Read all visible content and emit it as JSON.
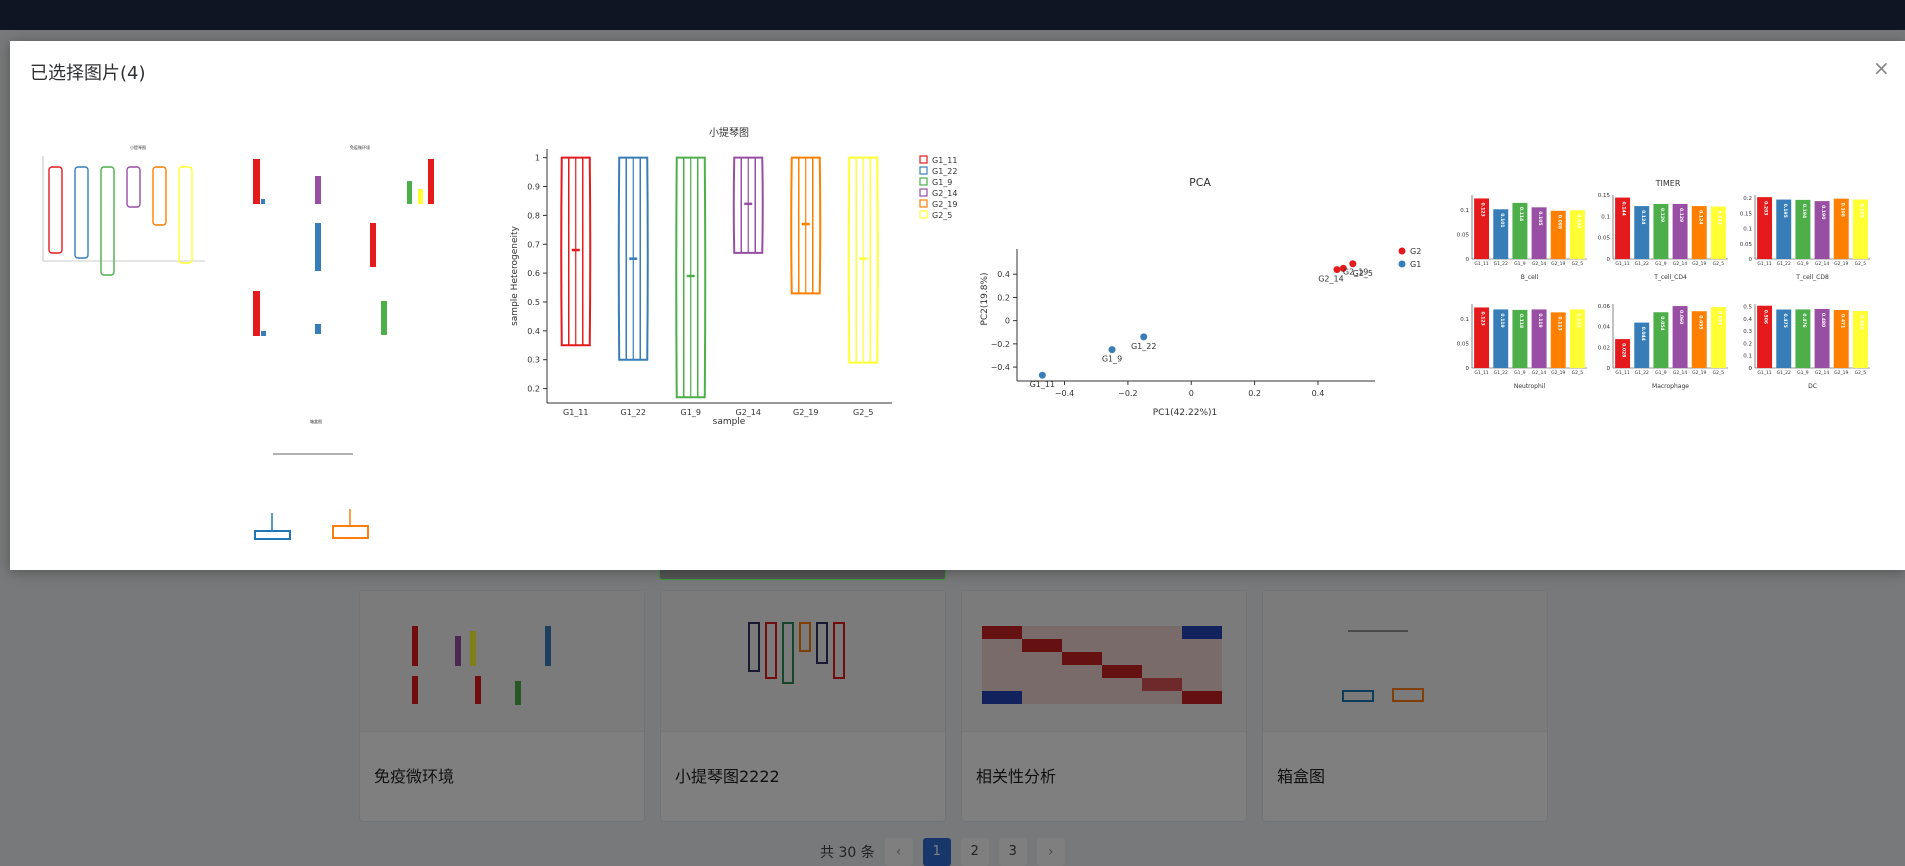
{
  "dialog": {
    "title": "已选择图片(4)",
    "close_icon": "×"
  },
  "background_cards": [
    {
      "title": "免疫微环境"
    },
    {
      "title": "小提琴图2222"
    },
    {
      "title": "相关性分析"
    },
    {
      "title": "箱盒图"
    }
  ],
  "pagination": {
    "total": "共 30 条",
    "pages": [
      "1",
      "2",
      "3"
    ],
    "active": "1",
    "prev": "‹",
    "next": "›"
  },
  "chart_data": [
    {
      "type": "violin",
      "title": "小提琴图",
      "xlabel": "sample",
      "ylabel": "sample Heterogeneity",
      "categories": [
        "G1_11",
        "G1_22",
        "G1_9",
        "G2_14",
        "G2_19",
        "G2_5"
      ],
      "ranges": [
        [
          0.35,
          1.0
        ],
        [
          0.3,
          1.0
        ],
        [
          0.17,
          1.0
        ],
        [
          0.67,
          1.0
        ],
        [
          0.53,
          1.0
        ],
        [
          0.29,
          1.0
        ]
      ],
      "medians": [
        0.68,
        0.65,
        0.59,
        0.84,
        0.77,
        0.65
      ],
      "colors": [
        "#e41a1c",
        "#377eb8",
        "#4daf4a",
        "#984ea3",
        "#ff7f00",
        "#ffff33"
      ],
      "yticks": [
        "0.2",
        "0.3",
        "0.4",
        "0.5",
        "0.6",
        "0.7",
        "0.8",
        "0.9",
        "1"
      ],
      "ylim": [
        0.15,
        1.03
      ],
      "legend": [
        "G1_11",
        "G1_22",
        "G1_9",
        "G2_14",
        "G2_19",
        "G2_5"
      ]
    },
    {
      "type": "scatter",
      "title": "PCA",
      "xlabel": "PC1(42.22%)1",
      "ylabel": "PC2(19.8%)",
      "xticks": [
        "−0.4",
        "−0.2",
        "0",
        "0.2",
        "0.4"
      ],
      "yticks": [
        "−0.4",
        "−0.2",
        "0",
        "0.2",
        "0.4"
      ],
      "xlim": [
        -0.55,
        0.58
      ],
      "ylim": [
        -0.52,
        0.6
      ],
      "points": [
        {
          "x": -0.47,
          "y": -0.47,
          "label": "G1_11",
          "group": "G1"
        },
        {
          "x": -0.25,
          "y": -0.25,
          "label": "G1_9",
          "group": "G1"
        },
        {
          "x": -0.15,
          "y": -0.14,
          "label": "G1_22",
          "group": "G1"
        },
        {
          "x": 0.46,
          "y": 0.44,
          "label": "G2_14",
          "group": "G2"
        },
        {
          "x": 0.48,
          "y": 0.45,
          "label": "",
          "group": "G2"
        },
        {
          "x": 0.51,
          "y": 0.49,
          "label": "G2_5",
          "group": "G2"
        }
      ],
      "point_labels_extra": [
        "G2_19"
      ],
      "legend": [
        {
          "name": "G2",
          "color": "#e41a1c"
        },
        {
          "name": "G1",
          "color": "#377eb8"
        }
      ]
    },
    {
      "type": "bar",
      "title": "TIMER",
      "categories": [
        "G1_11",
        "G1_22",
        "G1_9",
        "G2_14",
        "G2_19",
        "G2_5"
      ],
      "colors": [
        "#e41a1c",
        "#377eb8",
        "#4daf4a",
        "#984ea3",
        "#ff7f00",
        "#ffff33"
      ],
      "panels": [
        {
          "name": "B_cell",
          "values": [
            0.123,
            0.101,
            0.114,
            0.105,
            0.098,
            0.099
          ],
          "labels": [
            "0.123",
            "0.101",
            "0.114",
            "0.105",
            "0.098",
            "0.099"
          ],
          "ymax": 0.13,
          "yticks": [
            "0",
            "0.05",
            "0.1"
          ]
        },
        {
          "name": "T_cell_CD4",
          "values": [
            0.144,
            0.124,
            0.129,
            0.129,
            0.124,
            0.123
          ],
          "labels": [
            "0.144",
            "0.124",
            "0.129",
            "0.129",
            "0.124",
            "0.123"
          ],
          "ymax": 0.15,
          "yticks": [
            "0",
            "0.05",
            "0.1",
            "0.15"
          ]
        },
        {
          "name": "T_cell_CD8",
          "values": [
            0.203,
            0.195,
            0.194,
            0.19,
            0.198,
            0.195
          ],
          "labels": [
            "0.203",
            "0.195",
            "0.194",
            "0.190",
            "0.198",
            "0.195"
          ],
          "ymax": 0.21,
          "yticks": [
            "0",
            "0.05",
            "0.1",
            "0.15",
            "0.2"
          ]
        },
        {
          "name": "Neutrophil",
          "values": [
            0.123,
            0.119,
            0.118,
            0.119,
            0.113,
            0.119
          ],
          "labels": [
            "0.123",
            "0.119",
            "0.118",
            "0.119",
            "0.113",
            "0.119"
          ],
          "ymax": 0.13,
          "yticks": [
            "0",
            "0.05",
            "0.1"
          ]
        },
        {
          "name": "Macrophage",
          "values": [
            0.028,
            0.044,
            0.054,
            0.06,
            0.055,
            0.059
          ],
          "labels": [
            "0.028",
            "0.044",
            "0.054",
            "0.060",
            "0.055",
            "0.059"
          ],
          "ymax": 0.062,
          "yticks": [
            "0",
            "0.02",
            "0.04",
            "0.06"
          ]
        },
        {
          "name": "DC",
          "values": [
            0.506,
            0.475,
            0.476,
            0.48,
            0.471,
            0.463
          ],
          "labels": [
            "0.506",
            "0.475",
            "0.476",
            "0.480",
            "0.471",
            "0.463"
          ],
          "ymax": 0.52,
          "yticks": [
            "0",
            "0.1",
            "0.2",
            "0.3",
            "0.4",
            "0.5"
          ]
        }
      ]
    }
  ]
}
